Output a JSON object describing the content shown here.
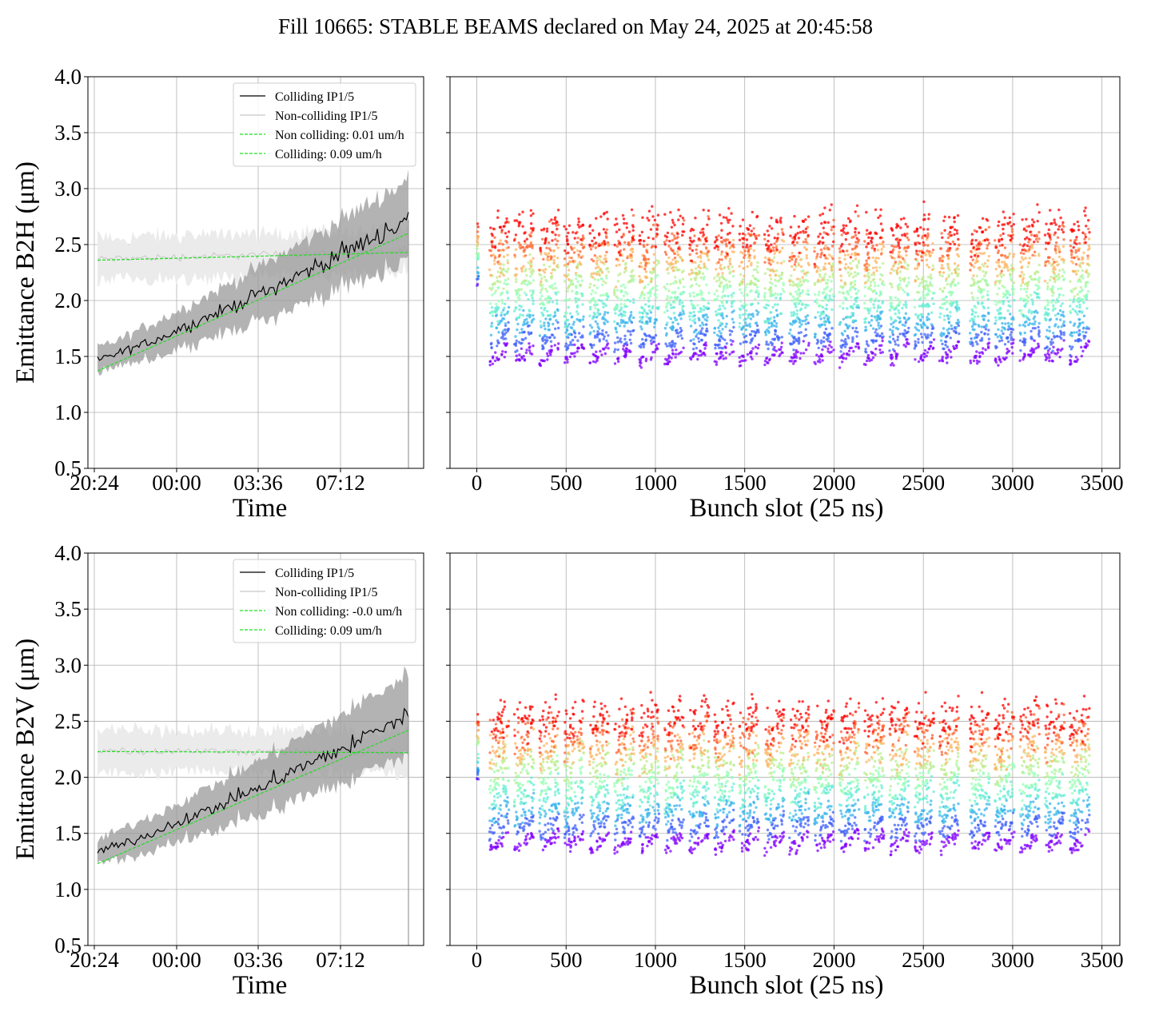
{
  "figure": {
    "title": "Fill 10665: STABLE BEAMS declared on May 24, 2025 at 20:45:58"
  },
  "colors": {
    "colliding": "#000000",
    "colliding_band": "#9a9a9a",
    "non_colliding": "#c8c8c8",
    "non_colliding_band": "#ebebeb",
    "fit": "#22dd22",
    "grid": "#b0b0b0"
  },
  "chart_data": [
    {
      "type": "line",
      "ylabel": "Emittance B2H (μm)",
      "xlabel": "Time",
      "ylim": [
        0.5,
        4.0
      ],
      "yticks": [
        "0.5",
        "1.0",
        "1.5",
        "2.0",
        "2.5",
        "3.0",
        "3.5",
        "4.0"
      ],
      "xticks": [
        "20:24",
        "00:00",
        "03:36",
        "07:12"
      ],
      "grid": true,
      "legend_position": "upper right",
      "legend": [
        "Colliding IP1/5",
        "Non-colliding IP1/5",
        "Non colliding: 0.01 um/h",
        "Colliding: 0.09 um/h"
      ],
      "series": [
        {
          "name": "Colliding IP1/5",
          "start_value": 1.47,
          "end_value": 2.72
        },
        {
          "name": "Non-colliding IP1/5",
          "start_value": 2.37,
          "end_value": 2.44
        },
        {
          "name": "Non colliding: 0.01 um/h",
          "start_value": 2.36,
          "end_value": 2.43
        },
        {
          "name": "Colliding: 0.09 um/h",
          "start_value": 1.37,
          "end_value": 2.6
        }
      ]
    },
    {
      "type": "scatter",
      "xlabel": "Bunch slot (25 ns)",
      "xlim": [
        -150,
        3600
      ],
      "ylim": [
        0.5,
        4.0
      ],
      "xticks": [
        "0",
        "500",
        "1000",
        "1500",
        "2000",
        "2500",
        "3000",
        "3500"
      ],
      "grid": true,
      "colormap": "rainbow",
      "bunch_trains_start": [
        70,
        210,
        350,
        490,
        630,
        770,
        910,
        1050,
        1190,
        1330,
        1470,
        1610,
        1750,
        1890,
        2030,
        2170,
        2310,
        2450,
        2590,
        2760,
        2900,
        3040,
        3180,
        3320
      ],
      "train_length": 110,
      "value_range": [
        1.0,
        3.4
      ]
    },
    {
      "type": "line",
      "ylabel": "Emittance B2V (μm)",
      "xlabel": "Time",
      "ylim": [
        0.5,
        4.0
      ],
      "yticks": [
        "0.5",
        "1.0",
        "1.5",
        "2.0",
        "2.5",
        "3.0",
        "3.5",
        "4.0"
      ],
      "xticks": [
        "20:24",
        "00:00",
        "03:36",
        "07:12"
      ],
      "grid": true,
      "legend_position": "upper right",
      "legend": [
        "Colliding IP1/5",
        "Non-colliding IP1/5",
        "Non colliding: -0.0 um/h",
        "Colliding: 0.09 um/h"
      ],
      "series": [
        {
          "name": "Colliding IP1/5",
          "start_value": 1.34,
          "end_value": 2.55
        },
        {
          "name": "Non-colliding IP1/5",
          "start_value": 2.24,
          "end_value": 2.22
        },
        {
          "name": "Non colliding: -0.0 um/h",
          "start_value": 2.23,
          "end_value": 2.22
        },
        {
          "name": "Colliding: 0.09 um/h",
          "start_value": 1.23,
          "end_value": 2.42
        }
      ]
    },
    {
      "type": "scatter",
      "xlabel": "Bunch slot (25 ns)",
      "xlim": [
        -150,
        3600
      ],
      "ylim": [
        0.5,
        4.0
      ],
      "xticks": [
        "0",
        "500",
        "1000",
        "1500",
        "2000",
        "2500",
        "3000",
        "3500"
      ],
      "grid": true,
      "colormap": "rainbow",
      "bunch_trains_start": [
        70,
        210,
        350,
        490,
        630,
        770,
        910,
        1050,
        1190,
        1330,
        1470,
        1610,
        1750,
        1890,
        2030,
        2170,
        2310,
        2450,
        2590,
        2760,
        2900,
        3040,
        3180,
        3320
      ],
      "train_length": 110,
      "value_range": [
        1.05,
        3.08
      ]
    }
  ]
}
